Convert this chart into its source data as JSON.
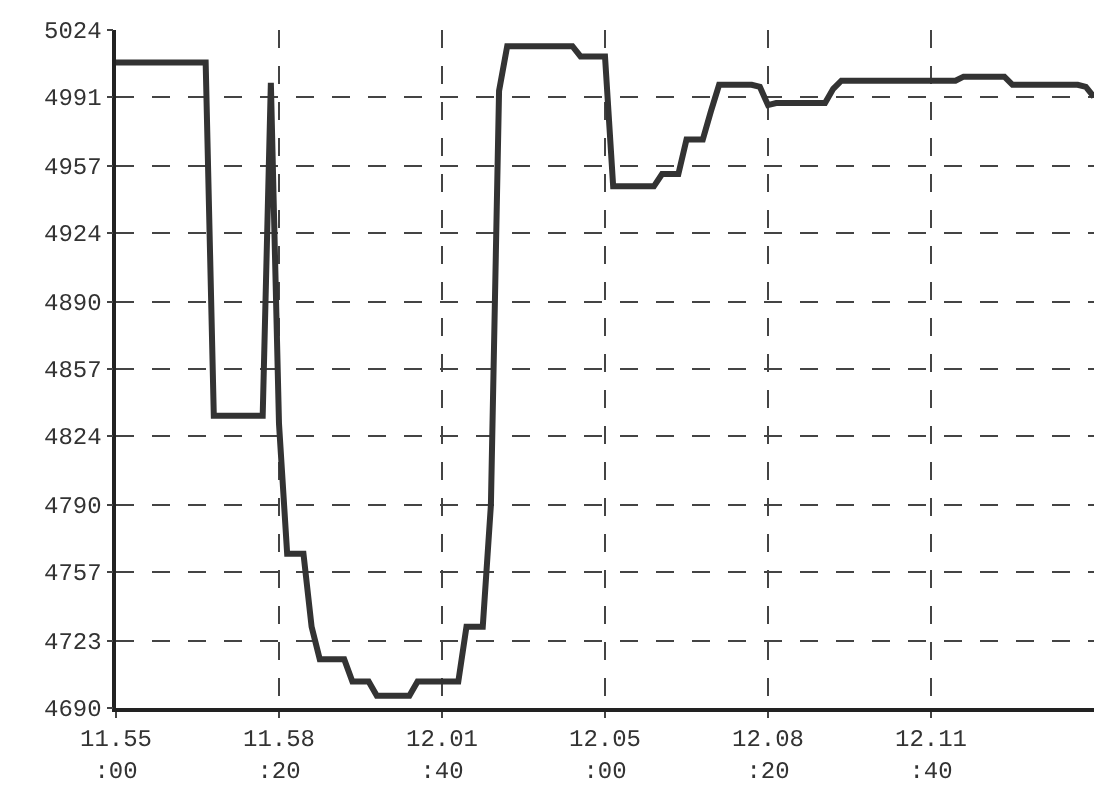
{
  "chart_data": {
    "type": "line",
    "categories": [
      "11.55\n:00",
      null,
      null,
      null,
      null,
      null,
      null,
      null,
      null,
      null,
      null,
      null,
      null,
      null,
      null,
      null,
      null,
      null,
      null,
      null,
      "11.58\n:20",
      null,
      null,
      null,
      null,
      null,
      null,
      null,
      null,
      null,
      null,
      null,
      null,
      null,
      null,
      null,
      null,
      null,
      null,
      null,
      "12.01\n:40",
      null,
      null,
      null,
      null,
      null,
      null,
      null,
      null,
      null,
      null,
      null,
      null,
      null,
      null,
      null,
      null,
      null,
      null,
      null,
      "12.05\n:00",
      null,
      null,
      null,
      null,
      null,
      null,
      null,
      null,
      null,
      null,
      null,
      null,
      null,
      null,
      null,
      null,
      null,
      null,
      null,
      "12.08\n:20",
      null,
      null,
      null,
      null,
      null,
      null,
      null,
      null,
      null,
      null,
      null,
      null,
      null,
      null,
      null,
      null,
      null,
      null,
      null,
      "12.11\n:40",
      null,
      null,
      null,
      null,
      null,
      null,
      null,
      null,
      null,
      null,
      null,
      null,
      null,
      null,
      null,
      null,
      null,
      null,
      null,
      null
    ],
    "series": [
      {
        "color": "#333333",
        "values": [
          5008,
          5008,
          5008,
          5008,
          5008,
          5008,
          5008,
          5008,
          5008,
          5008,
          5008,
          5008,
          4834,
          4834,
          4834,
          4834,
          4834,
          4834,
          4834,
          4998,
          4830,
          4766,
          4766,
          4766,
          4730,
          4714,
          4714,
          4714,
          4714,
          4703,
          4703,
          4703,
          4696,
          4696,
          4696,
          4696,
          4696,
          4703,
          4703,
          4703,
          4703,
          4703,
          4703,
          4730,
          4730,
          4730,
          4790,
          4994,
          5016,
          5016,
          5016,
          5016,
          5016,
          5016,
          5016,
          5016,
          5016,
          5011,
          5011,
          5011,
          5011,
          4947,
          4947,
          4947,
          4947,
          4947,
          4947,
          4953,
          4953,
          4953,
          4970,
          4970,
          4970,
          4984,
          4997,
          4997,
          4997,
          4997,
          4997,
          4996,
          4987,
          4988,
          4988,
          4988,
          4988,
          4988,
          4988,
          4988,
          4995,
          4999,
          4999,
          4999,
          4999,
          4999,
          4999,
          4999,
          4999,
          4999,
          4999,
          4999,
          4999,
          4999,
          4999,
          4999,
          5001,
          5001,
          5001,
          5001,
          5001,
          5001,
          4997,
          4997,
          4997,
          4997,
          4997,
          4997,
          4997,
          4997,
          4997,
          4996,
          4991
        ]
      }
    ],
    "ylim": [
      4690,
      5024
    ],
    "yticks": [
      4690,
      4723,
      4757,
      4790,
      4824,
      4857,
      4890,
      4924,
      4957,
      4991,
      5024
    ],
    "grid": true,
    "marker": "none",
    "line_style": "solid"
  }
}
